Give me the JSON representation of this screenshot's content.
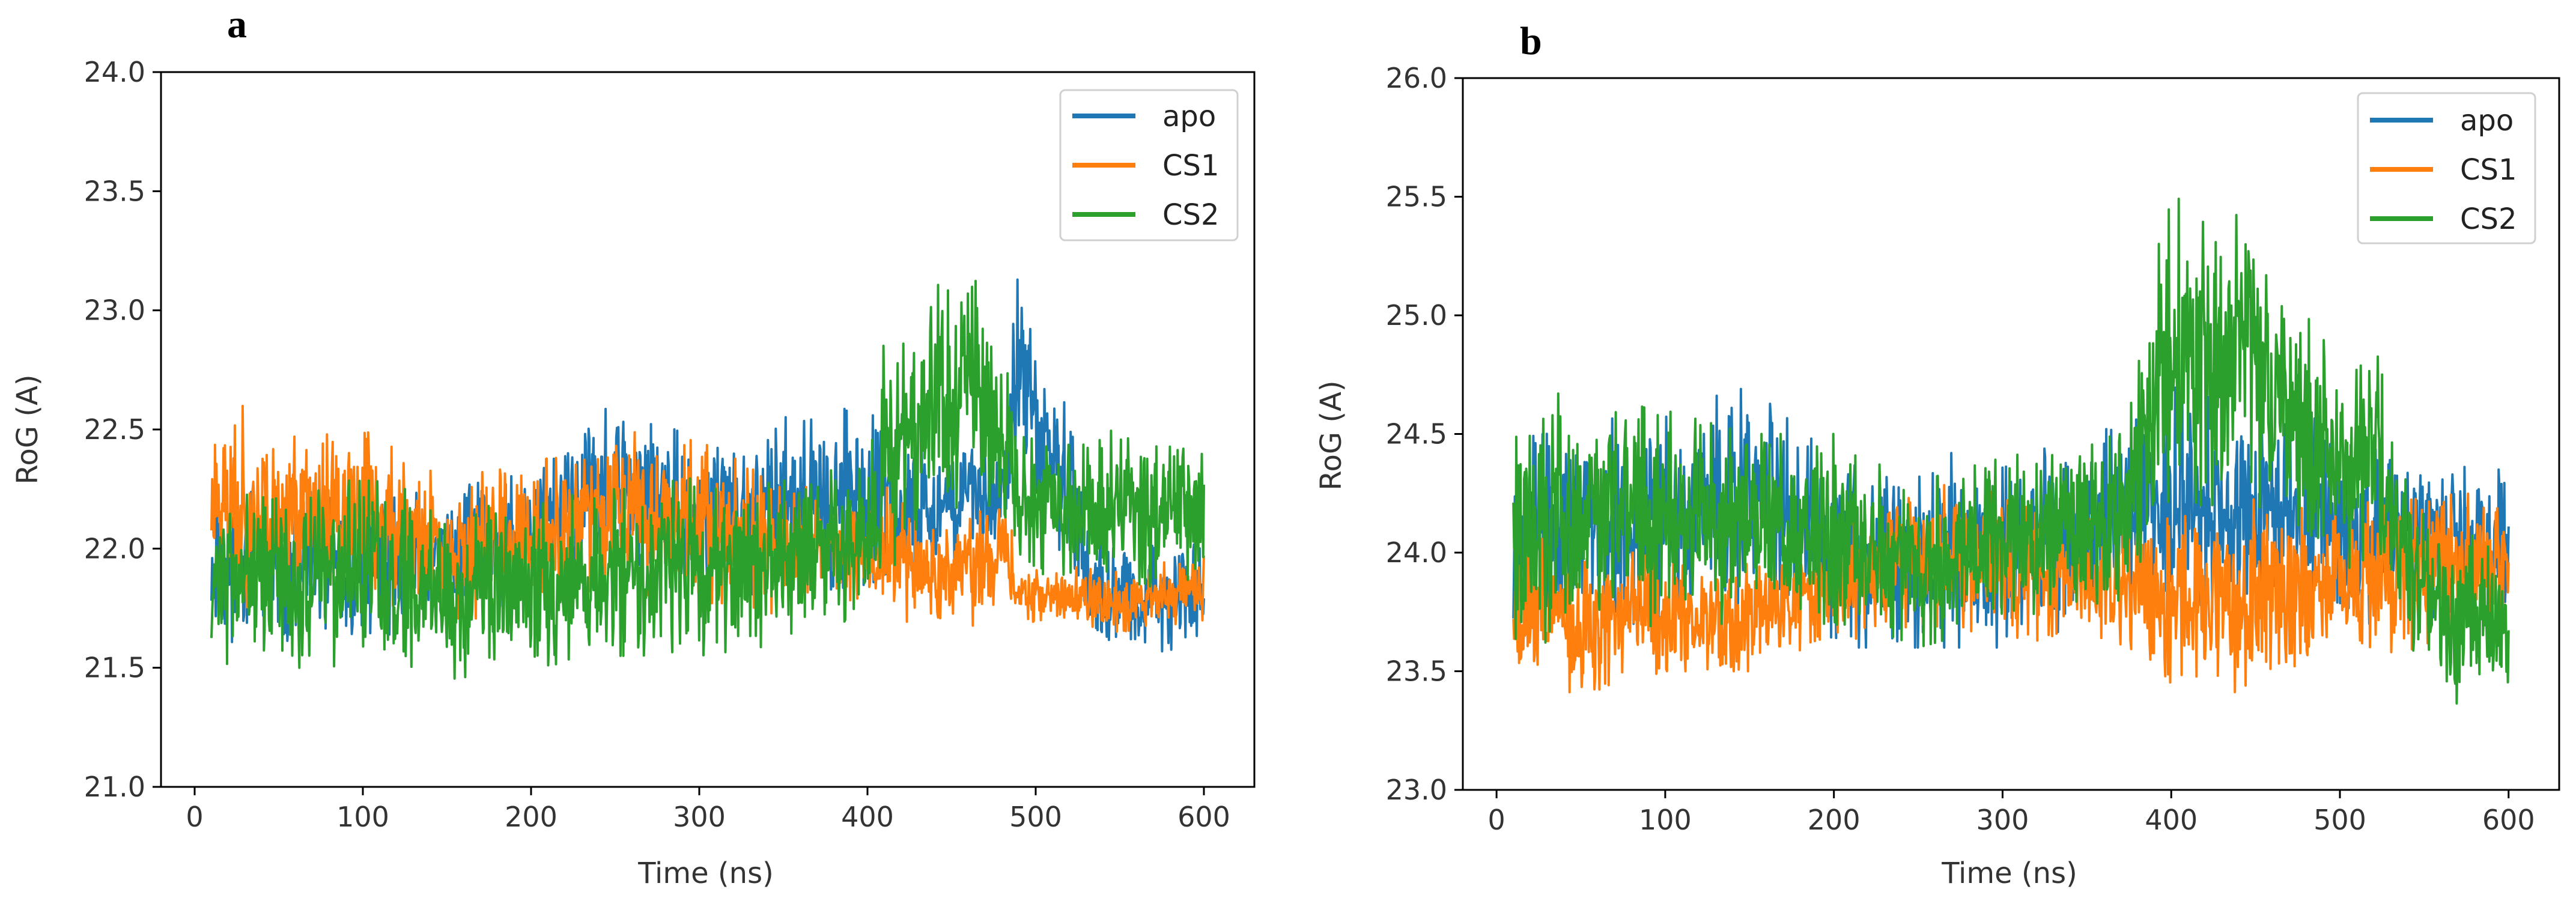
{
  "chart_data": [
    {
      "panel_label": "a",
      "type": "line",
      "title": "",
      "xlabel": "Time (ns)",
      "ylabel": "RoG (A)",
      "xlim": [
        -20,
        630
      ],
      "ylim": [
        21.0,
        24.0
      ],
      "xticks": [
        0,
        100,
        200,
        300,
        400,
        500,
        600
      ],
      "xtick_labels": [
        "0",
        "100",
        "200",
        "300",
        "400",
        "500",
        "600"
      ],
      "yticks": [
        21.0,
        21.5,
        22.0,
        22.5,
        23.0,
        23.5,
        24.0
      ],
      "ytick_labels": [
        "21.0",
        "21.5",
        "22.0",
        "22.5",
        "23.0",
        "23.5",
        "24.0"
      ],
      "legend_position": "top-right",
      "grid": false,
      "x_range": [
        10,
        600
      ],
      "series": [
        {
          "name": "apo",
          "color": "#1f77b4",
          "seed": 11,
          "envelope": [
            [
              10,
              21.62,
              22.22
            ],
            [
              50,
              21.58,
              22.25
            ],
            [
              100,
              21.6,
              22.22
            ],
            [
              150,
              21.72,
              22.25
            ],
            [
              200,
              21.78,
              22.32
            ],
            [
              250,
              21.88,
              22.62
            ],
            [
              300,
              21.82,
              22.45
            ],
            [
              350,
              21.8,
              22.55
            ],
            [
              400,
              21.85,
              22.6
            ],
            [
              420,
              21.9,
              22.4
            ],
            [
              480,
              22.0,
              22.5
            ],
            [
              490,
              22.3,
              23.25
            ],
            [
              500,
              22.1,
              22.9
            ],
            [
              520,
              21.95,
              22.65
            ],
            [
              530,
              21.6,
              22.15
            ],
            [
              560,
              21.55,
              22.0
            ],
            [
              600,
              21.6,
              22.05
            ]
          ]
        },
        {
          "name": "CS1",
          "color": "#ff7f0e",
          "seed": 23,
          "envelope": [
            [
              10,
              21.8,
              22.58
            ],
            [
              30,
              21.72,
              22.6
            ],
            [
              60,
              21.75,
              22.5
            ],
            [
              100,
              21.72,
              22.5
            ],
            [
              150,
              21.7,
              22.3
            ],
            [
              200,
              21.72,
              22.35
            ],
            [
              250,
              21.82,
              22.5
            ],
            [
              300,
              21.78,
              22.45
            ],
            [
              350,
              21.72,
              22.28
            ],
            [
              400,
              21.8,
              22.2
            ],
            [
              410,
              21.7,
              22.3
            ],
            [
              450,
              21.65,
              22.1
            ],
            [
              480,
              21.7,
              22.25
            ],
            [
              490,
              21.7,
              21.95
            ],
            [
              550,
              21.65,
              21.9
            ],
            [
              600,
              21.7,
              21.98
            ]
          ]
        },
        {
          "name": "CS2",
          "color": "#2ca02c",
          "seed": 37,
          "envelope": [
            [
              10,
              21.5,
              22.2
            ],
            [
              50,
              21.5,
              22.25
            ],
            [
              100,
              21.5,
              22.3
            ],
            [
              150,
              21.45,
              22.2
            ],
            [
              200,
              21.5,
              22.2
            ],
            [
              250,
              21.55,
              22.25
            ],
            [
              300,
              21.55,
              22.3
            ],
            [
              350,
              21.6,
              22.3
            ],
            [
              400,
              21.7,
              22.35
            ],
            [
              410,
              21.9,
              22.9
            ],
            [
              440,
              22.05,
              23.1
            ],
            [
              470,
              22.1,
              23.2
            ],
            [
              490,
              21.9,
              22.5
            ],
            [
              500,
              21.9,
              22.45
            ],
            [
              550,
              21.82,
              22.5
            ],
            [
              600,
              21.88,
              22.5
            ]
          ]
        }
      ]
    },
    {
      "panel_label": "b",
      "type": "line",
      "title": "",
      "xlabel": "Time (ns)",
      "ylabel": "RoG (A)",
      "xlim": [
        -20,
        630
      ],
      "ylim": [
        23.0,
        26.0
      ],
      "xticks": [
        0,
        100,
        200,
        300,
        400,
        500,
        600
      ],
      "xtick_labels": [
        "0",
        "100",
        "200",
        "300",
        "400",
        "500",
        "600"
      ],
      "yticks": [
        23.0,
        23.5,
        24.0,
        24.5,
        25.0,
        25.5,
        26.0
      ],
      "ytick_labels": [
        "23.0",
        "23.5",
        "24.0",
        "24.5",
        "25.0",
        "25.5",
        "26.0"
      ],
      "legend_position": "top-right",
      "grid": false,
      "x_range": [
        10,
        600
      ],
      "series": [
        {
          "name": "apo",
          "color": "#1f77b4",
          "seed": 53,
          "envelope": [
            [
              10,
              23.7,
              24.5
            ],
            [
              100,
              23.7,
              24.6
            ],
            [
              150,
              23.8,
              24.7
            ],
            [
              200,
              23.6,
              24.4
            ],
            [
              250,
              23.6,
              24.4
            ],
            [
              300,
              23.6,
              24.45
            ],
            [
              350,
              23.7,
              24.55
            ],
            [
              380,
              23.8,
              24.6
            ],
            [
              400,
              23.7,
              24.7
            ],
            [
              450,
              23.8,
              24.6
            ],
            [
              500,
              23.7,
              24.55
            ],
            [
              550,
              23.7,
              24.4
            ],
            [
              600,
              23.7,
              24.35
            ]
          ]
        },
        {
          "name": "CS1",
          "color": "#ff7f0e",
          "seed": 67,
          "envelope": [
            [
              10,
              23.45,
              24.1
            ],
            [
              50,
              23.4,
              24.0
            ],
            [
              100,
              23.5,
              24.0
            ],
            [
              150,
              23.5,
              23.95
            ],
            [
              200,
              23.6,
              24.15
            ],
            [
              250,
              23.7,
              24.3
            ],
            [
              300,
              23.65,
              24.25
            ],
            [
              350,
              23.6,
              24.2
            ],
            [
              380,
              23.55,
              24.1
            ],
            [
              400,
              23.45,
              24.2
            ],
            [
              450,
              23.4,
              24.25
            ],
            [
              500,
              23.55,
              24.2
            ],
            [
              550,
              23.6,
              24.3
            ],
            [
              600,
              23.7,
              24.2
            ]
          ]
        },
        {
          "name": "CS2",
          "color": "#2ca02c",
          "seed": 79,
          "envelope": [
            [
              10,
              23.6,
              24.7
            ],
            [
              100,
              23.7,
              24.6
            ],
            [
              150,
              23.7,
              24.5
            ],
            [
              200,
              23.7,
              24.5
            ],
            [
              250,
              23.6,
              24.3
            ],
            [
              300,
              23.7,
              24.4
            ],
            [
              370,
              23.8,
              24.5
            ],
            [
              385,
              24.0,
              25.1
            ],
            [
              400,
              24.2,
              25.5
            ],
            [
              450,
              24.2,
              25.4
            ],
            [
              480,
              24.1,
              25.0
            ],
            [
              500,
              23.9,
              24.8
            ],
            [
              520,
              24.0,
              24.9
            ],
            [
              540,
              23.6,
              24.3
            ],
            [
              570,
              23.3,
              24.1
            ],
            [
              600,
              23.4,
              24.0
            ]
          ]
        }
      ]
    }
  ]
}
